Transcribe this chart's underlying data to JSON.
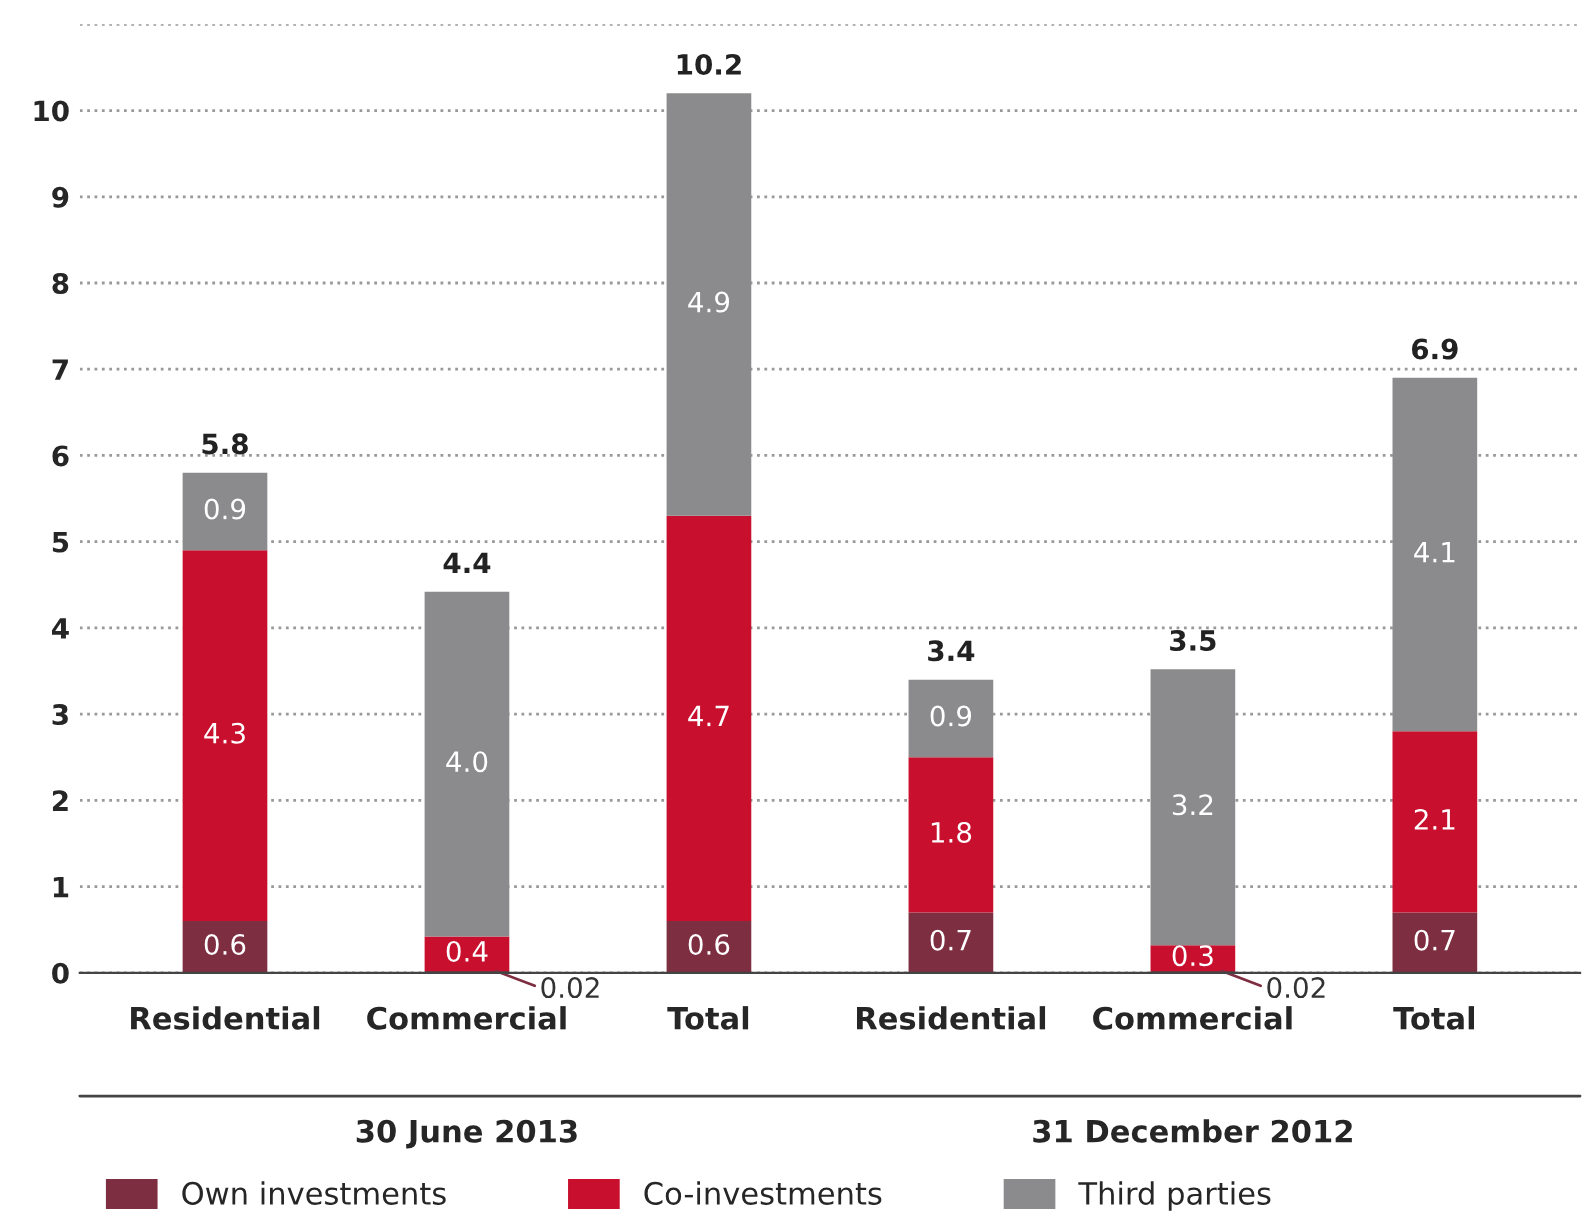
{
  "chart_data": {
    "type": "bar",
    "stacked": true,
    "categories": [
      "Residential",
      "Commercial",
      "Total",
      "Residential",
      "Commercial",
      "Total"
    ],
    "series": [
      {
        "name": "Own investments",
        "color": "#7d2e41",
        "values": [
          0.6,
          0.02,
          0.6,
          0.7,
          0.02,
          0.7
        ],
        "value_labels": [
          "0.6",
          "0.02",
          "0.6",
          "0.7",
          "0.02",
          "0.7"
        ]
      },
      {
        "name": "Co-investments",
        "color": "#c8102e",
        "values": [
          4.3,
          0.4,
          4.7,
          1.8,
          0.3,
          2.1
        ],
        "value_labels": [
          "4.3",
          "0.4",
          "4.7",
          "1.8",
          "0.3",
          "2.1"
        ]
      },
      {
        "name": "Third parties",
        "color": "#8b8b8d",
        "values": [
          0.9,
          4.0,
          4.9,
          0.9,
          3.2,
          4.1
        ],
        "value_labels": [
          "0.9",
          "4.0",
          "4.9",
          "0.9",
          "3.2",
          "4.1"
        ]
      }
    ],
    "totals": [
      "5.8",
      "4.4",
      "10.2",
      "3.4",
      "3.5",
      "6.9"
    ],
    "annotations": [
      "30 June 2013",
      "31 December 2012"
    ],
    "ylim": [
      0,
      11
    ],
    "yticks": [
      0,
      1,
      2,
      3,
      4,
      5,
      6,
      7,
      8,
      9,
      10,
      {
        "value": 11,
        "label": null
      }
    ],
    "grid": "y",
    "legend": "bottom"
  }
}
